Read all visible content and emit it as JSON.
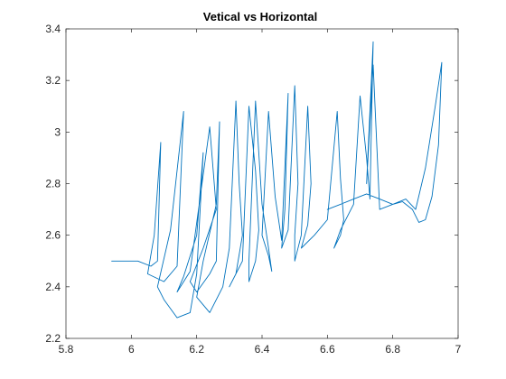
{
  "chart_data": {
    "type": "line",
    "title": "Vetical vs Horizontal",
    "xlabel": "",
    "ylabel": "",
    "xlim": [
      5.8,
      7.0
    ],
    "ylim": [
      2.2,
      3.4
    ],
    "x_ticks": [
      5.8,
      6.0,
      6.2,
      6.4,
      6.6,
      6.8,
      7.0
    ],
    "y_ticks": [
      2.2,
      2.4,
      2.6,
      2.8,
      3.0,
      3.2,
      3.4
    ],
    "x_tick_labels": [
      "5.8",
      "6",
      "6.2",
      "6.4",
      "6.6",
      "6.8",
      "7"
    ],
    "y_tick_labels": [
      "2.2",
      "2.4",
      "2.6",
      "2.8",
      "3",
      "3.2",
      "3.4"
    ],
    "grid": false,
    "box": true,
    "line_color": "#0072BD",
    "axis_color": "#262626",
    "series": [
      {
        "x": [
          5.94,
          6.02,
          6.06,
          6.08,
          6.09,
          6.07,
          6.05,
          6.1,
          6.14,
          6.16,
          6.12,
          6.08,
          6.1,
          6.14,
          6.18,
          6.2,
          6.22,
          6.2,
          6.16,
          6.14,
          6.18,
          6.24,
          6.26,
          6.22,
          6.18,
          6.2,
          6.24,
          6.26,
          6.27,
          6.26,
          6.22,
          6.2,
          6.24,
          6.28,
          6.3,
          6.32,
          6.33,
          6.34,
          6.32,
          6.3,
          6.34,
          6.36,
          6.38,
          6.39,
          6.38,
          6.36,
          6.36,
          6.38,
          6.4,
          6.42,
          6.43,
          6.42,
          6.4,
          6.42,
          6.44,
          6.46,
          6.48,
          6.47,
          6.46,
          6.48,
          6.5,
          6.51,
          6.5,
          6.5,
          6.52,
          6.54,
          6.55,
          6.54,
          6.52,
          6.56,
          6.6,
          6.63,
          6.64,
          6.65,
          6.64,
          6.62,
          6.64,
          6.68,
          6.7,
          6.72,
          6.73,
          6.74,
          6.72,
          6.74,
          6.76,
          6.8,
          6.84,
          6.87,
          6.9,
          6.93,
          6.95,
          6.94,
          6.92,
          6.9,
          6.88,
          6.86,
          6.83,
          6.8,
          6.76,
          6.72,
          6.68,
          6.64,
          6.6
        ],
        "y": [
          2.5,
          2.5,
          2.48,
          2.5,
          2.96,
          2.6,
          2.45,
          2.42,
          2.48,
          3.08,
          2.62,
          2.4,
          2.35,
          2.28,
          2.3,
          2.45,
          2.92,
          2.6,
          2.44,
          2.38,
          2.46,
          3.02,
          2.7,
          2.55,
          2.42,
          2.38,
          2.45,
          2.5,
          3.04,
          2.72,
          2.5,
          2.36,
          2.3,
          2.4,
          2.55,
          3.12,
          2.8,
          2.6,
          2.45,
          2.4,
          2.5,
          3.1,
          2.85,
          2.62,
          2.5,
          2.42,
          2.5,
          3.12,
          2.72,
          2.55,
          2.46,
          2.52,
          2.6,
          3.08,
          2.75,
          2.58,
          3.15,
          2.7,
          2.55,
          2.62,
          3.18,
          2.8,
          2.6,
          2.5,
          2.6,
          3.1,
          2.8,
          2.64,
          2.55,
          2.6,
          2.66,
          3.08,
          2.82,
          2.66,
          2.6,
          2.55,
          2.62,
          2.72,
          3.14,
          2.9,
          2.74,
          3.35,
          2.8,
          3.26,
          2.7,
          2.72,
          2.74,
          2.7,
          2.86,
          3.1,
          3.27,
          2.95,
          2.75,
          2.66,
          2.65,
          2.7,
          2.73,
          2.72,
          2.74,
          2.76,
          2.74,
          2.72,
          2.7
        ]
      }
    ]
  }
}
